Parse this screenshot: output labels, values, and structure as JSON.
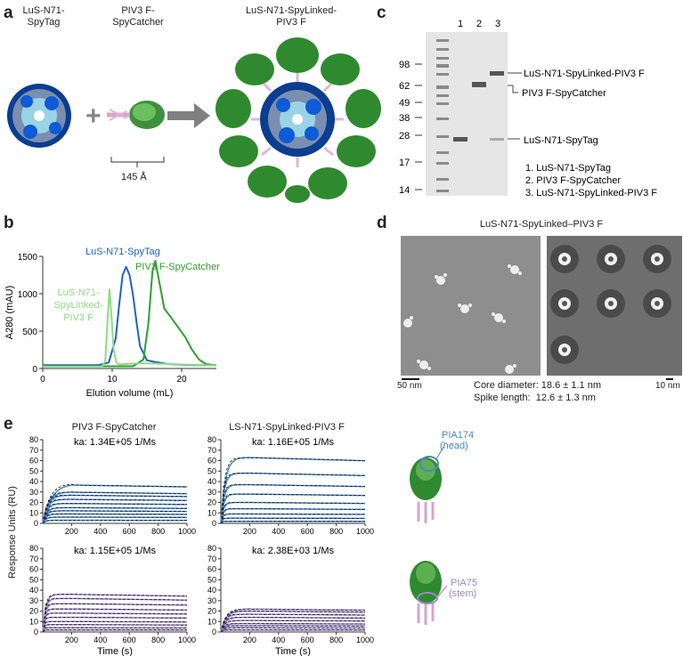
{
  "panel_a": {
    "letter": "a",
    "label_luss": "LuS-N71-\nSpyTag",
    "label_piv3": "PIV3 F-\nSpyCatcher",
    "label_linked": "LuS-N71-SpyLinked-\nPIV3 F",
    "scale": "145 Å",
    "plus": "+"
  },
  "panel_b": {
    "letter": "b",
    "chart_data": {
      "type": "line",
      "xlabel": "Elution volume (mL)",
      "ylabel": "A280 (mAU)",
      "xlim": [
        0,
        25
      ],
      "ylim": [
        0,
        1500
      ],
      "xticks": [
        0,
        10,
        20
      ],
      "yticks": [
        0,
        500,
        1000,
        1500
      ],
      "series": [
        {
          "name": "LuS-N71-SpyTag",
          "color": "#1f63c4",
          "x": [
            0,
            8,
            9.5,
            10.5,
            11,
            11.5,
            12,
            12.5,
            13,
            13.5,
            14,
            15,
            16,
            18,
            20,
            22,
            25
          ],
          "y": [
            45,
            45,
            80,
            400,
            850,
            1250,
            1360,
            1250,
            980,
            620,
            300,
            110,
            90,
            60,
            50,
            45,
            45
          ]
        },
        {
          "name": "PIV3 F-SpyCatcher",
          "color": "#2ea02e",
          "x": [
            0,
            13,
            14.5,
            15.2,
            15.8,
            16.2,
            16.8,
            17.5,
            18.5,
            19.5,
            20.5,
            21.5,
            22.5,
            23.5,
            25
          ],
          "y": [
            30,
            30,
            120,
            600,
            1300,
            1440,
            1150,
            800,
            680,
            550,
            420,
            250,
            120,
            60,
            40
          ]
        },
        {
          "name": "LuS-N71-SpyLinked-PIV3 F",
          "color": "#8fdc82",
          "x": [
            0,
            8.5,
            9,
            9.3,
            9.6,
            9.9,
            10.2,
            10.6,
            11,
            12,
            14,
            16,
            25
          ],
          "y": [
            25,
            25,
            100,
            600,
            1060,
            700,
            250,
            80,
            55,
            60,
            70,
            65,
            40
          ]
        }
      ]
    }
  },
  "panel_c": {
    "letter": "c",
    "markers": [
      "98",
      "62",
      "49",
      "38",
      "28",
      "17",
      "14"
    ],
    "lanes": [
      "1",
      "2",
      "3"
    ],
    "band_labels": [
      "LuS-N71-SpyLinked-PIV3 F",
      "PIV3 F-SpyCatcher",
      "LuS-N71-SpyTag"
    ],
    "legend": [
      "1. LuS-N71-SpyTag",
      "2. PIV3 F-SpyCatcher",
      "3. LuS-N71-SpyLinked-PIV3 F"
    ]
  },
  "panel_d": {
    "letter": "d",
    "title": "LuS-N71-SpyLinked–PIV3 F",
    "scale_left": "50 nm",
    "scale_right": "10 nm",
    "core": "Core diameter: 18.6 ± 1.1 nm",
    "spike": "Spike length:  12.6 ± 1.3 nm"
  },
  "panel_e": {
    "letter": "e",
    "ylabel": "Response Units (RU)",
    "xlabel": "Time (s)",
    "col1_title": "PIV3 F-SpyCatcher",
    "col2_title": "LS-N71-SpyLinked-PIV3 F",
    "xticks": [
      "200",
      "400",
      "600",
      "800",
      "1000"
    ],
    "yticks": [
      "0",
      "10",
      "20",
      "30",
      "40",
      "50",
      "60",
      "70",
      "80"
    ],
    "ka_tl": "ka: 1.34E+05 1/Ms",
    "ka_tr": "ka: 1.16E+05 1/Ms",
    "ka_bl": "ka: 1.15E+05 1/Ms",
    "ka_br": "ka: 2.38E+03 1/Ms",
    "pia174": "PIA174\n(head)",
    "pia75": "PIA75\n(stem)",
    "colors": {
      "head": "#4a86c8",
      "stem": "#9b86cf",
      "fit": "#111111"
    }
  }
}
